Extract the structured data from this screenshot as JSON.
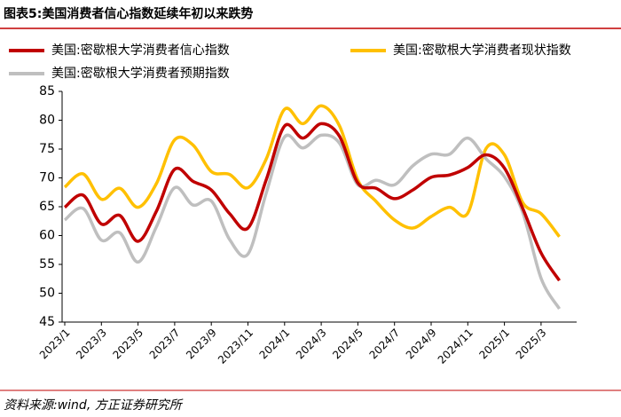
{
  "chart_data": {
    "type": "line",
    "title": "图表5:美国消费者信心指数延续年初以来跌势",
    "source": "资料来源:wind, 方正证券研究所",
    "categories": [
      "2023/1",
      null,
      "2023/3",
      null,
      "2023/5",
      null,
      "2023/7",
      null,
      "2023/9",
      null,
      "2023/11",
      null,
      "2024/1",
      null,
      "2024/3",
      null,
      "2024/5",
      null,
      "2024/7",
      null,
      "2024/9",
      null,
      "2024/11",
      null,
      "2025/1",
      null,
      "2025/3",
      null
    ],
    "series": [
      {
        "name": "美国:密歇根大学消费者信心指数",
        "color": "#c00000",
        "values": [
          64.9,
          67.0,
          62.0,
          63.5,
          59.0,
          64.2,
          71.5,
          69.4,
          67.9,
          63.8,
          61.3,
          69.7,
          79.0,
          76.9,
          79.4,
          77.2,
          69.1,
          68.2,
          66.4,
          67.9,
          70.1,
          70.5,
          71.8,
          74.0,
          71.7,
          64.7,
          57.0,
          52.2
        ]
      },
      {
        "name": "美国:密歇根大学消费者现状指数",
        "color": "#ffc000",
        "values": [
          68.4,
          70.7,
          66.3,
          68.2,
          64.9,
          69.0,
          76.6,
          75.7,
          71.1,
          70.6,
          68.3,
          73.3,
          81.9,
          79.4,
          82.5,
          79.0,
          69.6,
          65.9,
          62.7,
          61.3,
          63.3,
          64.9,
          63.9,
          75.1,
          74.0,
          65.7,
          63.8,
          59.8
        ]
      },
      {
        "name": "美国:密歇根大学消费者预期指数",
        "color": "#bfbfbf",
        "values": [
          62.7,
          64.7,
          59.2,
          60.5,
          55.4,
          61.5,
          68.3,
          65.3,
          66.0,
          59.3,
          56.8,
          67.4,
          77.1,
          75.2,
          77.4,
          76.0,
          68.8,
          69.6,
          68.8,
          72.1,
          74.1,
          74.1,
          76.9,
          73.3,
          70.2,
          64.0,
          52.6,
          47.3
        ]
      }
    ],
    "ylim": [
      45,
      85
    ],
    "yticks": [
      45,
      50,
      55,
      60,
      65,
      70,
      75,
      80,
      85
    ]
  }
}
